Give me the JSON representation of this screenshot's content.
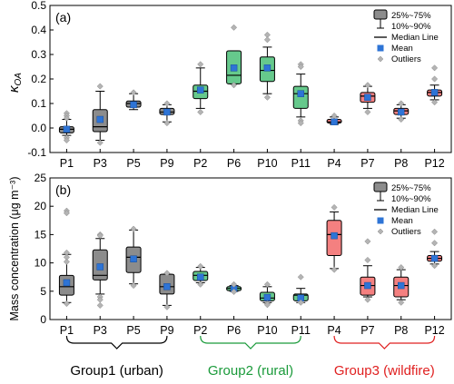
{
  "chart_data": [
    {
      "type": "box",
      "panel_label": "(a)",
      "ylabel_main": "κ",
      "ylabel_sub": "OA",
      "ylim": [
        -0.1,
        0.5
      ],
      "yticks": [
        "-0.1",
        "0.0",
        "0.1",
        "0.2",
        "0.3",
        "0.4",
        "0.5"
      ],
      "categories": [
        "P1",
        "P3",
        "P5",
        "P9",
        "P2",
        "P6",
        "P10",
        "P11",
        "P4",
        "P7",
        "P8",
        "P12"
      ],
      "groups": [
        "Group1",
        "Group1",
        "Group1",
        "Group1",
        "Group2",
        "Group2",
        "Group2",
        "Group2",
        "Group3",
        "Group3",
        "Group3",
        "Group3"
      ],
      "boxes": [
        {
          "p10": -0.03,
          "q1": -0.02,
          "median": -0.005,
          "q3": 0.005,
          "p90": 0.035,
          "mean": -0.005,
          "outliers": [
            0.06,
            0.05,
            0.04,
            -0.04,
            -0.05
          ]
        },
        {
          "p10": -0.05,
          "q1": -0.015,
          "median": 0.005,
          "q3": 0.075,
          "p90": 0.15,
          "mean": 0.035,
          "outliers": [
            0.17,
            -0.06
          ]
        },
        {
          "p10": 0.075,
          "q1": 0.085,
          "median": 0.1,
          "q3": 0.11,
          "p90": 0.14,
          "mean": 0.095,
          "outliers": [
            0.145
          ]
        },
        {
          "p10": 0.025,
          "q1": 0.055,
          "median": 0.065,
          "q3": 0.08,
          "p90": 0.095,
          "mean": 0.065,
          "outliers": [
            0.1,
            0.02
          ]
        },
        {
          "p10": 0.08,
          "q1": 0.12,
          "median": 0.15,
          "q3": 0.175,
          "p90": 0.245,
          "mean": 0.155,
          "outliers": [
            0.26,
            0.065
          ]
        },
        {
          "p10": 0.18,
          "q1": 0.18,
          "median": 0.215,
          "q3": 0.315,
          "p90": 0.315,
          "mean": 0.245,
          "outliers": [
            0.41,
            0.175
          ]
        },
        {
          "p10": 0.14,
          "q1": 0.19,
          "median": 0.235,
          "q3": 0.29,
          "p90": 0.33,
          "mean": 0.245,
          "outliers": [
            0.38,
            0.36,
            0.125
          ]
        },
        {
          "p10": 0.045,
          "q1": 0.08,
          "median": 0.14,
          "q3": 0.17,
          "p90": 0.22,
          "mean": 0.14,
          "outliers": [
            0.26,
            0.25,
            0.03,
            0.02
          ]
        },
        {
          "p10": 0.015,
          "q1": 0.02,
          "median": 0.025,
          "q3": 0.035,
          "p90": 0.045,
          "mean": 0.025,
          "outliers": [
            0.05
          ]
        },
        {
          "p10": 0.08,
          "q1": 0.105,
          "median": 0.13,
          "q3": 0.145,
          "p90": 0.17,
          "mean": 0.125,
          "outliers": [
            0.175,
            0.065
          ]
        },
        {
          "p10": 0.04,
          "q1": 0.055,
          "median": 0.07,
          "q3": 0.08,
          "p90": 0.095,
          "mean": 0.065,
          "outliers": [
            0.1,
            0.035
          ]
        },
        {
          "p10": 0.115,
          "q1": 0.13,
          "median": 0.145,
          "q3": 0.155,
          "p90": 0.175,
          "mean": 0.145,
          "outliers": [
            0.245,
            0.2,
            0.105
          ]
        }
      ]
    },
    {
      "type": "box",
      "panel_label": "(b)",
      "ylabel": "Mass concentration (μg m⁻³)",
      "ylim": [
        0,
        25
      ],
      "yticks": [
        "0",
        "5",
        "10",
        "15",
        "20",
        "25"
      ],
      "categories": [
        "P1",
        "P3",
        "P5",
        "P9",
        "P2",
        "P6",
        "P10",
        "P11",
        "P4",
        "P7",
        "P8",
        "P12"
      ],
      "groups": [
        "Group1",
        "Group1",
        "Group1",
        "Group1",
        "Group2",
        "Group2",
        "Group2",
        "Group2",
        "Group3",
        "Group3",
        "Group3",
        "Group3"
      ],
      "boxes": [
        {
          "p10": 3.0,
          "q1": 4.3,
          "median": 5.8,
          "q3": 7.8,
          "p90": 11.5,
          "mean": 6.5,
          "outliers": [
            19.2,
            18.8,
            11.8,
            11.0,
            10.2,
            2.8
          ]
        },
        {
          "p10": 4.5,
          "q1": 7.0,
          "median": 7.8,
          "q3": 12.3,
          "p90": 14.3,
          "mean": 9.3,
          "outliers": [
            15.0,
            14.8,
            4.0,
            3.5,
            2.5
          ]
        },
        {
          "p10": 6.3,
          "q1": 8.3,
          "median": 11.0,
          "q3": 12.8,
          "p90": 15.8,
          "mean": 10.7,
          "outliers": [
            16.0,
            6.0
          ]
        },
        {
          "p10": 2.5,
          "q1": 4.5,
          "median": 5.8,
          "q3": 8.0,
          "p90": 8.0,
          "mean": 5.8,
          "outliers": [
            8.2,
            2.2
          ]
        },
        {
          "p10": 6.5,
          "q1": 6.9,
          "median": 7.8,
          "q3": 8.5,
          "p90": 9.2,
          "mean": 7.5,
          "outliers": [
            9.4,
            6.2
          ]
        },
        {
          "p10": 5.0,
          "q1": 5.1,
          "median": 5.5,
          "q3": 5.8,
          "p90": 6.0,
          "mean": 5.4,
          "outliers": [
            6.2,
            4.9
          ]
        },
        {
          "p10": 3.0,
          "q1": 3.3,
          "median": 3.8,
          "q3": 4.8,
          "p90": 5.8,
          "mean": 3.9,
          "outliers": [
            6.2,
            2.8,
            2.6
          ]
        },
        {
          "p10": 3.0,
          "q1": 3.3,
          "median": 4.3,
          "q3": 4.5,
          "p90": 5.5,
          "mean": 3.8,
          "outliers": [
            7.5,
            3.0
          ]
        },
        {
          "p10": 9.0,
          "q1": 11.3,
          "median": 15.0,
          "q3": 17.5,
          "p90": 19.0,
          "mean": 14.8,
          "outliers": [
            19.8,
            8.8
          ]
        },
        {
          "p10": 4.0,
          "q1": 4.3,
          "median": 6.0,
          "q3": 7.5,
          "p90": 9.5,
          "mean": 6.0,
          "outliers": [
            13.8,
            10.5,
            3.5
          ]
        },
        {
          "p10": 3.5,
          "q1": 4.0,
          "median": 6.0,
          "q3": 7.5,
          "p90": 8.8,
          "mean": 6.0,
          "outliers": [
            9.2,
            3.0
          ]
        },
        {
          "p10": 9.8,
          "q1": 10.3,
          "median": 10.8,
          "q3": 11.3,
          "p90": 12.0,
          "mean": 10.8,
          "outliers": [
            15.5,
            13.5,
            9.5
          ]
        }
      ]
    }
  ],
  "legend": {
    "box_range": "25%~75%",
    "whisker_range": "10%~90%",
    "median": "Median Line",
    "mean": "Mean",
    "outliers": "Outliers"
  },
  "groups": [
    {
      "label": "Group1 (urban)",
      "color": "#000000"
    },
    {
      "label": "Group2 (rural)",
      "color": "#1a9a3a"
    },
    {
      "label": "Group3 (wildfire)",
      "color": "#e02020"
    }
  ],
  "colors": {
    "Group1": "#8c8c8c",
    "Group2": "#66c98c",
    "Group3": "#f48080",
    "mean": "#2e74d6",
    "outlier": "#b4b4b4"
  }
}
